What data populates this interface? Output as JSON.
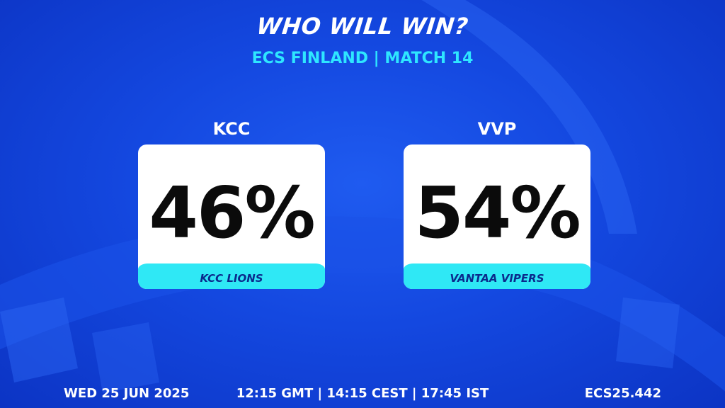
{
  "header": {
    "title": "WHO WILL WIN?",
    "subtitle": "ECS FINLAND | MATCH 14"
  },
  "teams": [
    {
      "code": "KCC",
      "percent": "46%",
      "name": "KCC LIONS"
    },
    {
      "code": "VVP",
      "percent": "54%",
      "name": "VANTAA VIPERS"
    }
  ],
  "footer": {
    "date": "WED 25 JUN 2025",
    "times": "12:15 GMT | 14:15 CEST | 17:45 IST",
    "code": "ECS25.442"
  }
}
